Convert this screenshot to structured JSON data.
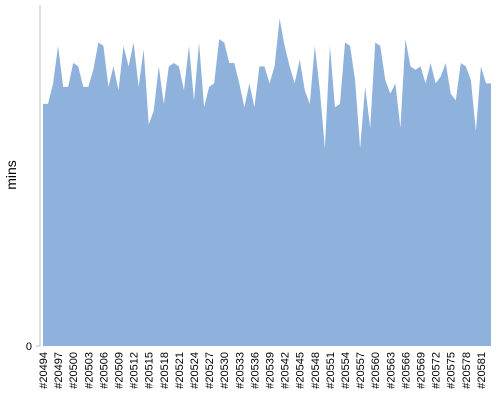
{
  "chart_data": {
    "type": "area",
    "ylabel": "mins",
    "color": "#8fb2dc",
    "categories": [
      "#20494",
      null,
      null,
      "#20497",
      null,
      null,
      "#20500",
      null,
      null,
      "#20503",
      null,
      null,
      "#20506",
      null,
      null,
      "#20509",
      null,
      null,
      "#20512",
      null,
      null,
      "#20515",
      null,
      null,
      "#20518",
      null,
      null,
      "#20521",
      null,
      null,
      "#20524",
      null,
      null,
      "#20527",
      null,
      null,
      "#20530",
      null,
      null,
      "#20533",
      null,
      null,
      "#20536",
      null,
      null,
      "#20539",
      null,
      null,
      "#20542",
      null,
      null,
      "#20545",
      null,
      null,
      "#20548",
      null,
      null,
      "#20551",
      null,
      null,
      "#20554",
      null,
      null,
      "#20557",
      null,
      null,
      "#20560",
      null,
      null,
      "#20563",
      null,
      null,
      "#20566",
      null,
      null,
      "#20569",
      null,
      null,
      "#20572",
      null,
      null,
      "#20575",
      null,
      null,
      "#20578",
      null,
      null,
      "#20581",
      null,
      null
    ],
    "values": [
      71,
      71,
      77,
      88,
      76,
      76,
      83,
      82,
      76,
      76,
      81,
      89,
      88,
      76,
      82,
      75,
      88,
      82,
      89,
      76,
      87,
      65,
      69,
      82,
      71,
      82,
      83,
      82,
      75,
      88,
      72,
      89,
      70,
      76,
      77,
      90,
      89,
      83,
      83,
      77,
      70,
      77,
      70,
      82,
      82,
      77,
      82,
      96,
      88,
      82,
      77,
      84,
      75,
      71,
      88,
      75,
      58,
      88,
      70,
      71,
      89,
      88,
      78,
      58,
      76,
      64,
      89,
      88,
      78,
      74,
      77,
      64,
      90,
      82,
      81,
      82,
      77,
      83,
      77,
      79,
      83,
      74,
      72,
      83,
      82,
      78,
      63,
      82,
      77,
      77
    ],
    "ylim": [
      0,
      100
    ],
    "yticks": [
      0
    ]
  }
}
